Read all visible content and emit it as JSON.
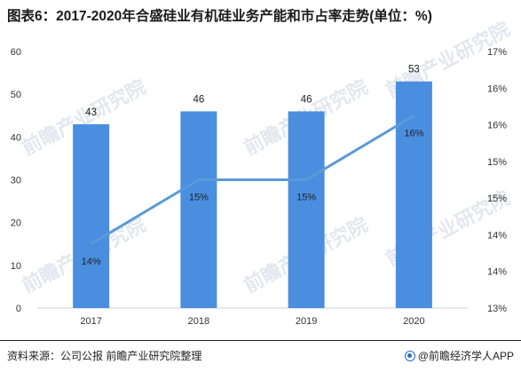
{
  "title": "图表6：2017-2020年合盛硅业有机硅业务产能和市占率走势(单位：%)",
  "footer": {
    "source": "资料来源：公司公报 前瞻产业研究院整理",
    "brand": "@前瞻经济学人APP"
  },
  "watermark": "前瞻产业研究院",
  "chart_data": {
    "type": "bar",
    "categories": [
      "2017",
      "2018",
      "2019",
      "2020"
    ],
    "series": [
      {
        "type": "bar",
        "axis": "left",
        "values": [
          43,
          46,
          46,
          53
        ],
        "data_labels": [
          "43",
          "46",
          "46",
          "53"
        ],
        "color": "#4a8ee0"
      },
      {
        "type": "line",
        "axis": "right",
        "values": [
          14.0,
          15.0,
          15.0,
          16.0
        ],
        "data_labels": [
          "14%",
          "15%",
          "15%",
          "16%"
        ],
        "color": "#5b9ad8"
      }
    ],
    "y_left": {
      "min": 0,
      "max": 60,
      "ticks": [
        "0",
        "10",
        "20",
        "30",
        "40",
        "50",
        "60"
      ]
    },
    "y_right": {
      "min": 13,
      "max": 17,
      "ticks": [
        "13%",
        "14%",
        "14%",
        "15%",
        "15%",
        "16%",
        "16%",
        "17%"
      ]
    },
    "grid": false,
    "legend": "none"
  }
}
